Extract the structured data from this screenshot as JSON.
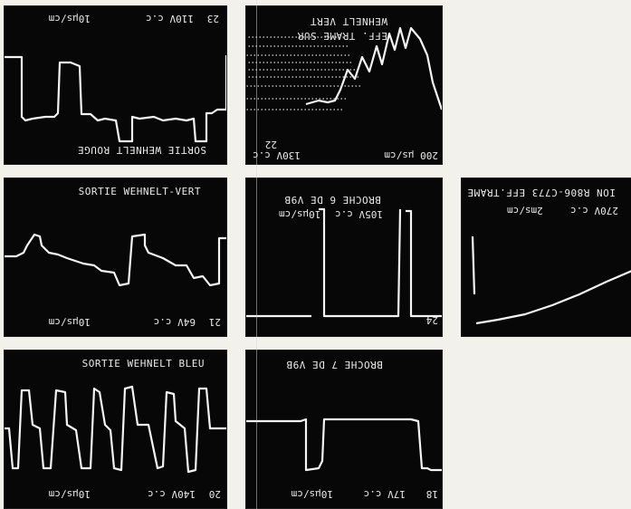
{
  "panels": {
    "p23": {
      "title": "SORTIE WEHNELT ROUGE",
      "number": "23",
      "voltage": "110V c.c",
      "timebase": "10µs/cm"
    },
    "p22": {
      "line1": "WEHNELT VERT",
      "line2": "EFF. TRAME SUR",
      "number": "22",
      "voltage": "130V c.c",
      "timebase": "200 µs/cm"
    },
    "p21": {
      "title": "SORTIE WEHNELT-VERT",
      "number": "21",
      "voltage": "64V c.c",
      "timebase": "10µs/cm"
    },
    "p24": {
      "line1": "BROCHE 6 DE V9B",
      "voltage": "105V c.c",
      "timebase": "10µs/cm",
      "number": "24"
    },
    "p25": {
      "title": "ION R806-C773 EFF.TRAME",
      "voltage": "270V c.c",
      "timebase": "2ms/cm"
    },
    "p20": {
      "title": "SORTIE WEHNELT BLEU",
      "number": "20",
      "voltage": "140V c.c",
      "timebase": "10µs/cm"
    },
    "p18": {
      "title": "BROCHE 7 DE V9B",
      "number": "18",
      "voltage": "17V c.c",
      "timebase": "10µs/cm"
    }
  }
}
